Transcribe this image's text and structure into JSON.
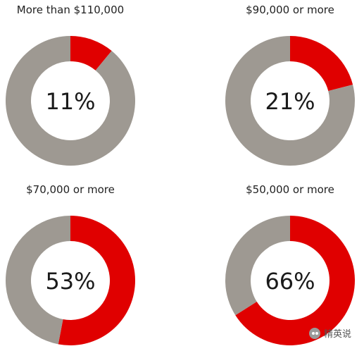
{
  "chart_data": [
    {
      "type": "pie",
      "title": "More than $110,000",
      "value_pct": 11,
      "label": "11%",
      "slices": [
        11,
        89
      ],
      "colors": [
        "#e00000",
        "#9e9992"
      ]
    },
    {
      "type": "pie",
      "title": "$90,000 or more",
      "value_pct": 21,
      "label": "21%",
      "slices": [
        21,
        79
      ],
      "colors": [
        "#e00000",
        "#9e9992"
      ]
    },
    {
      "type": "pie",
      "title": "$70,000 or more",
      "value_pct": 53,
      "label": "53%",
      "slices": [
        53,
        47
      ],
      "colors": [
        "#e00000",
        "#9e9992"
      ]
    },
    {
      "type": "pie",
      "title": "$50,000 or more",
      "value_pct": 66,
      "label": "66%",
      "slices": [
        66,
        34
      ],
      "colors": [
        "#e00000",
        "#9e9992"
      ]
    }
  ],
  "watermark": {
    "text": "精英说",
    "icon": "wechat-icon"
  }
}
